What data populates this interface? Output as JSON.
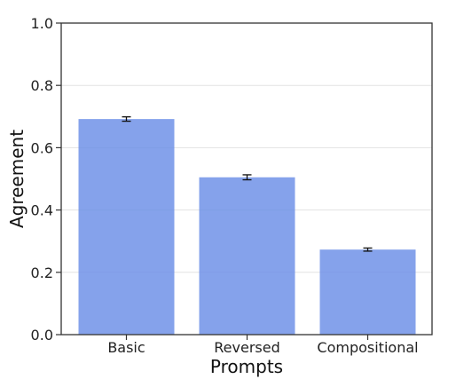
{
  "chart_data": {
    "type": "bar",
    "title": "",
    "xlabel": "Prompts",
    "ylabel": "Agreement",
    "categories": [
      "Basic",
      "Reversed",
      "Compositional"
    ],
    "values": [
      0.692,
      0.505,
      0.273
    ],
    "error": [
      0.007,
      0.008,
      0.005
    ],
    "ylim": [
      0.0,
      1.0
    ],
    "yticks": [
      "0.0",
      "0.2",
      "0.4",
      "0.6",
      "0.8",
      "1.0"
    ],
    "grid": "horizontal",
    "bar_color": "#6a8ee6",
    "error_color": "#111111"
  }
}
